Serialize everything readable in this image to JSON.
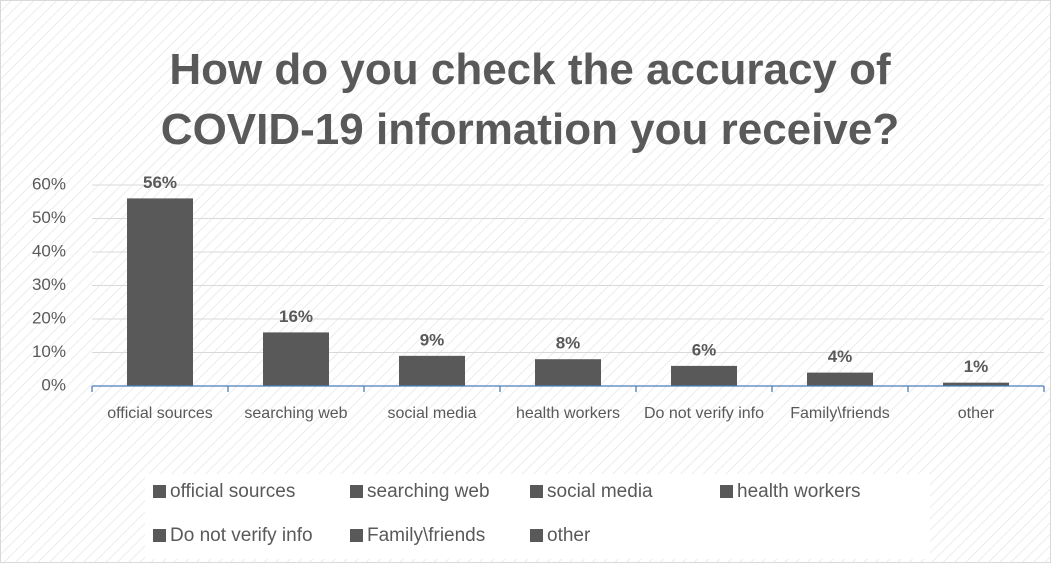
{
  "chart_data": {
    "type": "bar",
    "title": "How do you check the accuracy of COVID-19 information you receive?",
    "categories": [
      "official sources",
      "searching web",
      "social media",
      "health workers",
      "Do not verify info",
      "Family\\friends",
      "other"
    ],
    "values": [
      56,
      16,
      9,
      8,
      6,
      4,
      1
    ],
    "value_labels": [
      "56%",
      "16%",
      "9%",
      "8%",
      "6%",
      "4%",
      "1%"
    ],
    "color": "#595959",
    "ylim": [
      0,
      60
    ],
    "yticks": [
      {
        "value": 0,
        "label": "0%"
      },
      {
        "value": 10,
        "label": "10%"
      },
      {
        "value": 20,
        "label": "20%"
      },
      {
        "value": 30,
        "label": "30%"
      },
      {
        "value": 40,
        "label": "40%"
      },
      {
        "value": 50,
        "label": "50%"
      },
      {
        "value": 60,
        "label": "60%"
      }
    ],
    "grid": true,
    "legend": "bottom"
  }
}
